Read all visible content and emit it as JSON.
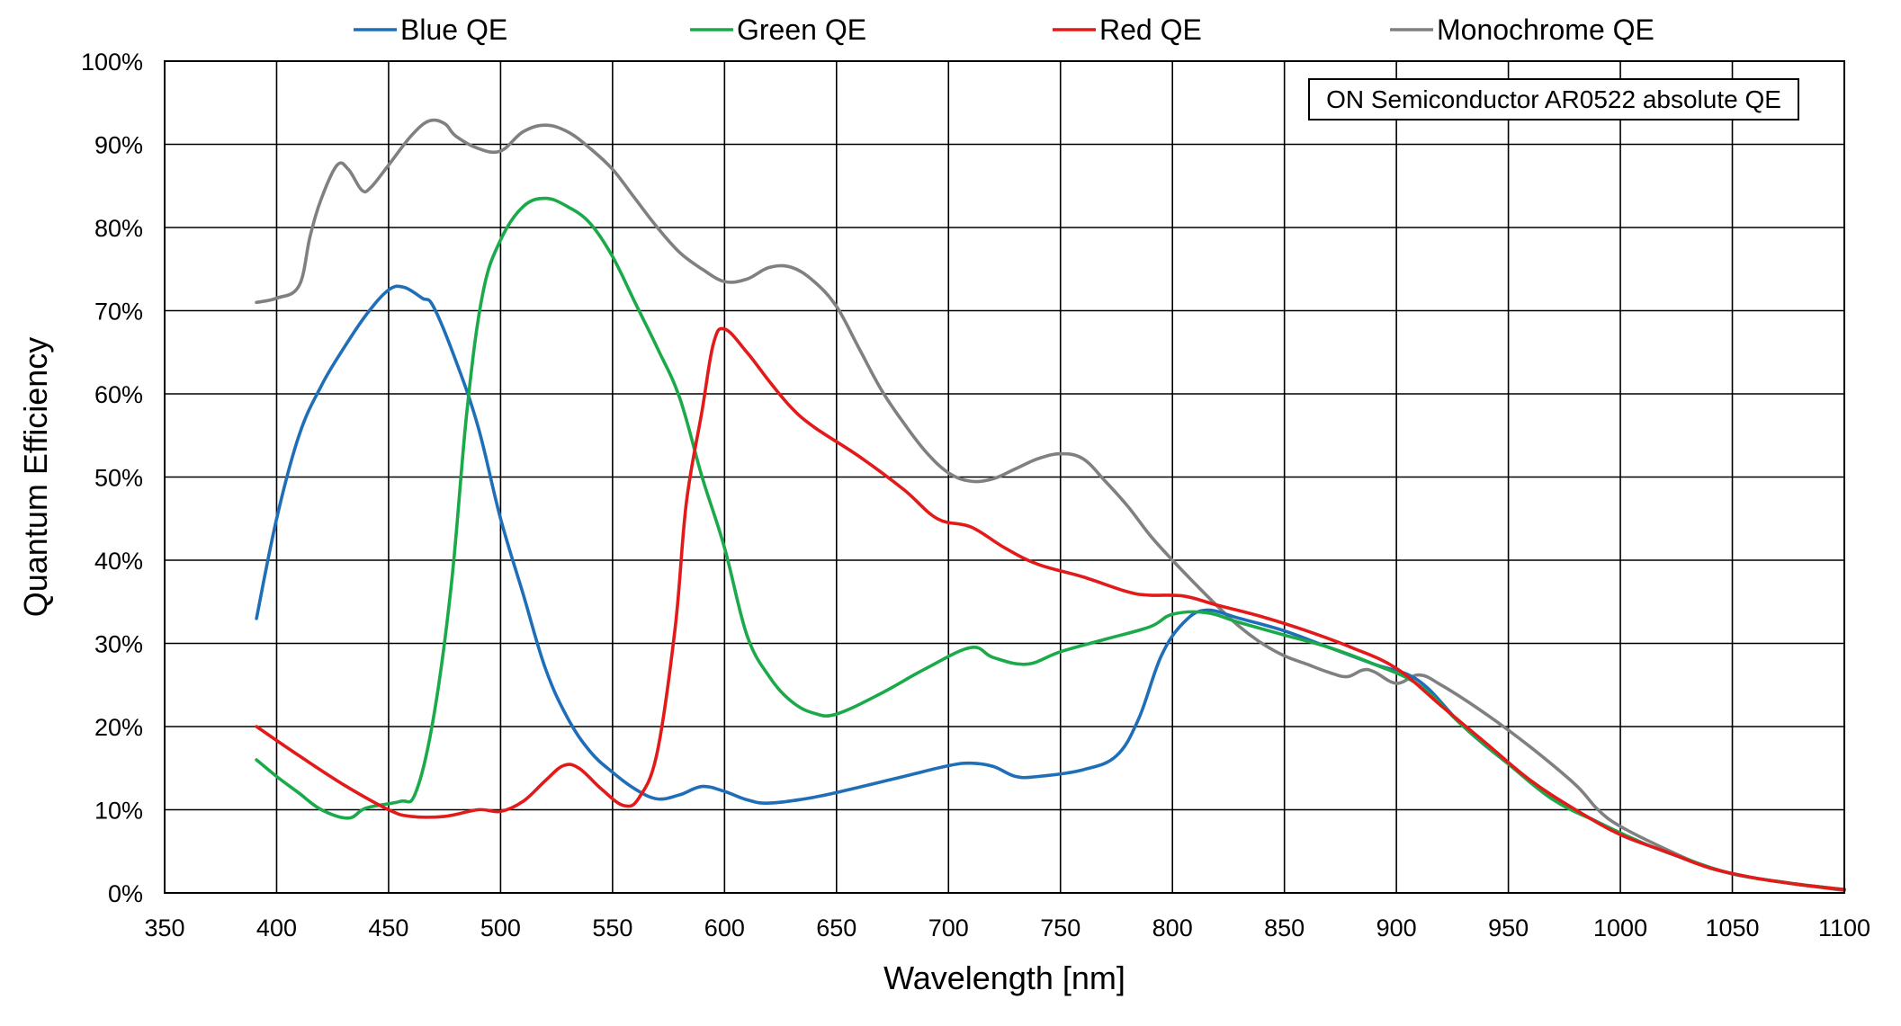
{
  "chart_data": {
    "type": "line",
    "xlabel": "Wavelength [nm]",
    "ylabel": "Quantum Efficiency",
    "annotation": "ON Semiconductor AR0522 absolute QE",
    "xlim": [
      350,
      1100
    ],
    "ylim": [
      0,
      100
    ],
    "x_ticks": [
      350,
      400,
      450,
      500,
      550,
      600,
      650,
      700,
      750,
      800,
      850,
      900,
      950,
      1000,
      1050,
      1100
    ],
    "y_ticks": [
      0,
      10,
      20,
      30,
      40,
      50,
      60,
      70,
      80,
      90,
      100
    ],
    "x_tick_labels": [
      "350",
      "400",
      "450",
      "500",
      "550",
      "600",
      "650",
      "700",
      "750",
      "800",
      "850",
      "900",
      "950",
      "1000",
      "1050",
      "1100"
    ],
    "y_tick_labels": [
      "0%",
      "10%",
      "20%",
      "30%",
      "40%",
      "50%",
      "60%",
      "70%",
      "80%",
      "90%",
      "100%"
    ],
    "grid": true,
    "legend_position": "top",
    "series": [
      {
        "name": "Blue QE",
        "color": "#1f6fb8",
        "points": [
          [
            391,
            33
          ],
          [
            400,
            45
          ],
          [
            410,
            55
          ],
          [
            420,
            61
          ],
          [
            430,
            65.5
          ],
          [
            440,
            69.5
          ],
          [
            450,
            72.5
          ],
          [
            457,
            72.8
          ],
          [
            465,
            71.5
          ],
          [
            470,
            70.5
          ],
          [
            480,
            64
          ],
          [
            490,
            56
          ],
          [
            500,
            45
          ],
          [
            510,
            36
          ],
          [
            520,
            27
          ],
          [
            530,
            21
          ],
          [
            540,
            17
          ],
          [
            550,
            14.5
          ],
          [
            560,
            12.5
          ],
          [
            570,
            11.3
          ],
          [
            580,
            11.8
          ],
          [
            590,
            12.8
          ],
          [
            600,
            12.2
          ],
          [
            610,
            11.2
          ],
          [
            620,
            10.8
          ],
          [
            640,
            11.5
          ],
          [
            660,
            12.7
          ],
          [
            680,
            14
          ],
          [
            700,
            15.3
          ],
          [
            710,
            15.6
          ],
          [
            720,
            15.2
          ],
          [
            730,
            14
          ],
          [
            740,
            14
          ],
          [
            760,
            14.8
          ],
          [
            775,
            16.5
          ],
          [
            785,
            21
          ],
          [
            795,
            28.5
          ],
          [
            805,
            32.5
          ],
          [
            815,
            34
          ],
          [
            830,
            33
          ],
          [
            850,
            31.5
          ],
          [
            870,
            29.5
          ],
          [
            890,
            27.5
          ],
          [
            910,
            25.5
          ],
          [
            930,
            20
          ],
          [
            950,
            15.5
          ],
          [
            970,
            11.5
          ],
          [
            990,
            8.5
          ],
          [
            1010,
            6
          ],
          [
            1030,
            4
          ],
          [
            1050,
            2.3
          ],
          [
            1075,
            1.2
          ],
          [
            1100,
            0.4
          ]
        ]
      },
      {
        "name": "Green QE",
        "color": "#1aaa4a",
        "points": [
          [
            391,
            16
          ],
          [
            400,
            14
          ],
          [
            410,
            12
          ],
          [
            420,
            10
          ],
          [
            432,
            9
          ],
          [
            440,
            10.2
          ],
          [
            455,
            11
          ],
          [
            462,
            12
          ],
          [
            470,
            21
          ],
          [
            478,
            37
          ],
          [
            485,
            58
          ],
          [
            492,
            72
          ],
          [
            500,
            78.5
          ],
          [
            510,
            82.5
          ],
          [
            520,
            83.5
          ],
          [
            530,
            82.5
          ],
          [
            540,
            80.5
          ],
          [
            550,
            76.5
          ],
          [
            560,
            71
          ],
          [
            570,
            65.5
          ],
          [
            580,
            59.5
          ],
          [
            590,
            50
          ],
          [
            600,
            41.5
          ],
          [
            610,
            31
          ],
          [
            620,
            26
          ],
          [
            630,
            23
          ],
          [
            640,
            21.6
          ],
          [
            650,
            21.5
          ],
          [
            670,
            24
          ],
          [
            690,
            27
          ],
          [
            710,
            29.5
          ],
          [
            720,
            28.3
          ],
          [
            735,
            27.5
          ],
          [
            750,
            29
          ],
          [
            770,
            30.5
          ],
          [
            790,
            32
          ],
          [
            800,
            33.5
          ],
          [
            815,
            33.7
          ],
          [
            830,
            32.5
          ],
          [
            850,
            31
          ],
          [
            870,
            29.5
          ],
          [
            890,
            27.5
          ],
          [
            910,
            25
          ],
          [
            930,
            20
          ],
          [
            950,
            15.5
          ],
          [
            970,
            11.2
          ],
          [
            990,
            8.5
          ],
          [
            1010,
            6
          ],
          [
            1030,
            4
          ],
          [
            1050,
            2.3
          ],
          [
            1075,
            1.2
          ],
          [
            1100,
            0.4
          ]
        ]
      },
      {
        "name": "Red QE",
        "color": "#e31a1a",
        "points": [
          [
            391,
            20
          ],
          [
            410,
            16.5
          ],
          [
            430,
            13
          ],
          [
            450,
            10
          ],
          [
            460,
            9.2
          ],
          [
            475,
            9.2
          ],
          [
            490,
            10
          ],
          [
            500,
            9.8
          ],
          [
            510,
            11
          ],
          [
            520,
            13.5
          ],
          [
            528,
            15.3
          ],
          [
            535,
            15
          ],
          [
            545,
            12.5
          ],
          [
            555,
            10.5
          ],
          [
            562,
            11.5
          ],
          [
            570,
            17
          ],
          [
            578,
            32
          ],
          [
            583,
            47
          ],
          [
            590,
            58
          ],
          [
            595,
            66
          ],
          [
            600,
            67.8
          ],
          [
            610,
            65
          ],
          [
            620,
            61.5
          ],
          [
            630,
            58.3
          ],
          [
            640,
            56
          ],
          [
            660,
            52.5
          ],
          [
            680,
            48.5
          ],
          [
            695,
            45
          ],
          [
            710,
            44
          ],
          [
            725,
            41.5
          ],
          [
            740,
            39.5
          ],
          [
            760,
            38
          ],
          [
            780,
            36.2
          ],
          [
            790,
            35.8
          ],
          [
            805,
            35.7
          ],
          [
            820,
            34.6
          ],
          [
            840,
            33.2
          ],
          [
            860,
            31.5
          ],
          [
            880,
            29.5
          ],
          [
            900,
            27
          ],
          [
            920,
            22.5
          ],
          [
            940,
            18
          ],
          [
            960,
            13.5
          ],
          [
            980,
            10
          ],
          [
            1000,
            7
          ],
          [
            1020,
            5
          ],
          [
            1040,
            3
          ],
          [
            1060,
            1.8
          ],
          [
            1080,
            1
          ],
          [
            1100,
            0.4
          ]
        ]
      },
      {
        "name": "Monochrome QE",
        "color": "#808080",
        "points": [
          [
            391,
            71
          ],
          [
            400,
            71.5
          ],
          [
            410,
            73
          ],
          [
            415,
            79
          ],
          [
            420,
            83.5
          ],
          [
            427,
            87.5
          ],
          [
            432,
            87
          ],
          [
            438,
            84.5
          ],
          [
            442,
            84.8
          ],
          [
            450,
            87.5
          ],
          [
            460,
            91
          ],
          [
            468,
            92.8
          ],
          [
            475,
            92.5
          ],
          [
            480,
            91
          ],
          [
            490,
            89.5
          ],
          [
            500,
            89.2
          ],
          [
            510,
            91.5
          ],
          [
            520,
            92.3
          ],
          [
            530,
            91.5
          ],
          [
            540,
            89.5
          ],
          [
            550,
            87
          ],
          [
            560,
            83.5
          ],
          [
            570,
            80
          ],
          [
            580,
            77
          ],
          [
            590,
            75
          ],
          [
            600,
            73.5
          ],
          [
            610,
            73.8
          ],
          [
            620,
            75.2
          ],
          [
            630,
            75.2
          ],
          [
            640,
            73.5
          ],
          [
            650,
            70.5
          ],
          [
            660,
            65.5
          ],
          [
            670,
            60.5
          ],
          [
            680,
            56.5
          ],
          [
            690,
            53
          ],
          [
            700,
            50.5
          ],
          [
            710,
            49.5
          ],
          [
            720,
            49.8
          ],
          [
            730,
            51
          ],
          [
            740,
            52.2
          ],
          [
            750,
            52.8
          ],
          [
            760,
            52.2
          ],
          [
            770,
            49.5
          ],
          [
            780,
            46.5
          ],
          [
            790,
            43
          ],
          [
            800,
            40
          ],
          [
            810,
            37.2
          ],
          [
            820,
            34.5
          ],
          [
            830,
            32
          ],
          [
            840,
            30
          ],
          [
            850,
            28.5
          ],
          [
            860,
            27.5
          ],
          [
            870,
            26.5
          ],
          [
            878,
            26
          ],
          [
            885,
            26.8
          ],
          [
            890,
            26.6
          ],
          [
            900,
            25.2
          ],
          [
            910,
            26.2
          ],
          [
            920,
            25
          ],
          [
            940,
            21.5
          ],
          [
            960,
            17.5
          ],
          [
            980,
            13
          ],
          [
            990,
            10
          ],
          [
            1000,
            8
          ],
          [
            1020,
            5.3
          ],
          [
            1040,
            3
          ],
          [
            1060,
            1.8
          ],
          [
            1080,
            1
          ],
          [
            1100,
            0.3
          ]
        ]
      }
    ]
  }
}
